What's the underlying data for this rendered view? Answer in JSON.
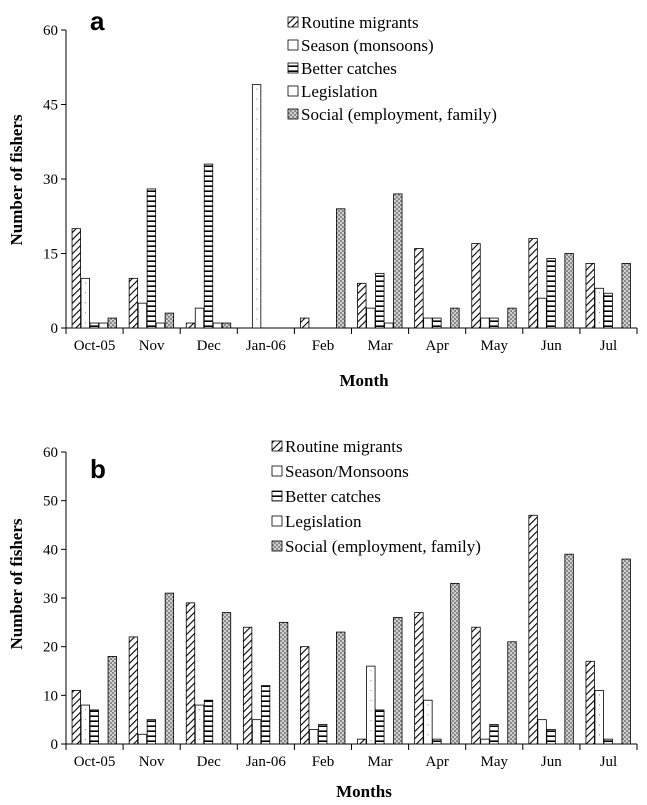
{
  "chart_data": [
    {
      "type": "bar",
      "panel_label": "a",
      "xlabel": "Month",
      "ylabel": "Number of fishers",
      "ylim": [
        0,
        60
      ],
      "yticks": [
        0,
        15,
        30,
        45,
        60
      ],
      "categories": [
        "Oct-05",
        "Nov",
        "Dec",
        "Jan-06",
        "Feb",
        "Mar",
        "Apr",
        "May",
        "Jun",
        "Jul"
      ],
      "legend_position": "top-right",
      "series": [
        {
          "name": "Routine migrants",
          "pattern": "diag",
          "values": [
            20,
            10,
            1,
            0,
            2,
            9,
            16,
            17,
            18,
            13
          ]
        },
        {
          "name": "Season (monsoons)",
          "pattern": "blank",
          "values": [
            10,
            5,
            4,
            49,
            0,
            4,
            2,
            2,
            6,
            8
          ]
        },
        {
          "name": "Better catches",
          "pattern": "hlines",
          "values": [
            1,
            28,
            33,
            0,
            0,
            11,
            2,
            2,
            14,
            7
          ]
        },
        {
          "name": "Legislation",
          "pattern": "blank",
          "values": [
            1,
            1,
            1,
            0,
            0,
            1,
            0,
            0,
            0,
            0
          ]
        },
        {
          "name": "Social (employment, family)",
          "pattern": "checker",
          "values": [
            2,
            3,
            1,
            0,
            24,
            27,
            4,
            4,
            15,
            13
          ]
        }
      ]
    },
    {
      "type": "bar",
      "panel_label": "b",
      "xlabel": "Months",
      "ylabel": "Number of fishers",
      "ylim": [
        0,
        60
      ],
      "yticks": [
        0,
        10,
        20,
        30,
        40,
        50,
        60
      ],
      "categories": [
        "Oct-05",
        "Nov",
        "Dec",
        "Jan-06",
        "Feb",
        "Mar",
        "Apr",
        "May",
        "Jun",
        "Jul"
      ],
      "legend_position": "top-right",
      "series": [
        {
          "name": "Routine migrants",
          "pattern": "diag",
          "values": [
            11,
            22,
            29,
            24,
            20,
            1,
            27,
            24,
            47,
            17
          ]
        },
        {
          "name": "Season/Monsoons",
          "pattern": "blank",
          "values": [
            8,
            2,
            8,
            5,
            3,
            16,
            9,
            1,
            5,
            11
          ]
        },
        {
          "name": "Better catches",
          "pattern": "hlines",
          "values": [
            7,
            5,
            9,
            12,
            4,
            7,
            1,
            4,
            3,
            1
          ]
        },
        {
          "name": "Legislation",
          "pattern": "blank",
          "values": [
            0,
            0,
            0,
            0,
            0,
            0,
            0,
            0,
            0,
            0
          ]
        },
        {
          "name": "Social (employment, family)",
          "pattern": "checker",
          "values": [
            18,
            31,
            27,
            25,
            23,
            26,
            33,
            21,
            39,
            38
          ]
        }
      ]
    }
  ]
}
